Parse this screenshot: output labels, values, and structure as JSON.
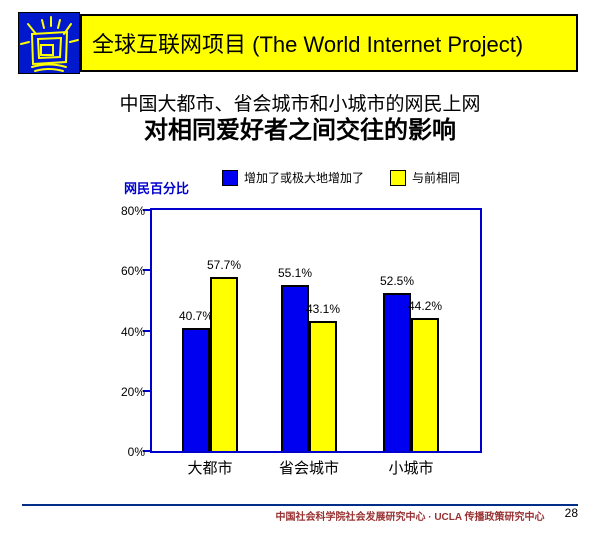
{
  "header": {
    "banner_title": "全球互联网项目 (The World Internet Project)",
    "logo_icon": "shining-monitor-icon",
    "banner_bg": "#FFFF00",
    "logo_bg": "#0019CC"
  },
  "title": {
    "line1": "中国大都市、省会城市和小城市的网民上网",
    "line2": "对相同爱好者之间交往的影响"
  },
  "chart_data": {
    "type": "bar",
    "title": "",
    "xlabel": "",
    "ylabel": "网民百分比",
    "categories": [
      "大都市",
      "省会城市",
      "小城市"
    ],
    "series": [
      {
        "name": "增加了或极大地增加了",
        "color": "#0000F0",
        "values": [
          40.7,
          55.1,
          52.5
        ]
      },
      {
        "name": "与前相同",
        "color": "#FFFF00",
        "values": [
          57.7,
          43.1,
          44.2
        ]
      }
    ],
    "ylim": [
      0,
      80
    ],
    "yticks": [
      "0%",
      "20%",
      "40%",
      "60%",
      "80%"
    ],
    "legend_position": "top",
    "grid": false,
    "axis_color": "#0000CC",
    "data_labels": true
  },
  "footer": {
    "text": "中国社会科学院社会发展研究中心 · UCLA 传播政策研究中心",
    "page_number": "28",
    "line_color": "#002d87"
  }
}
